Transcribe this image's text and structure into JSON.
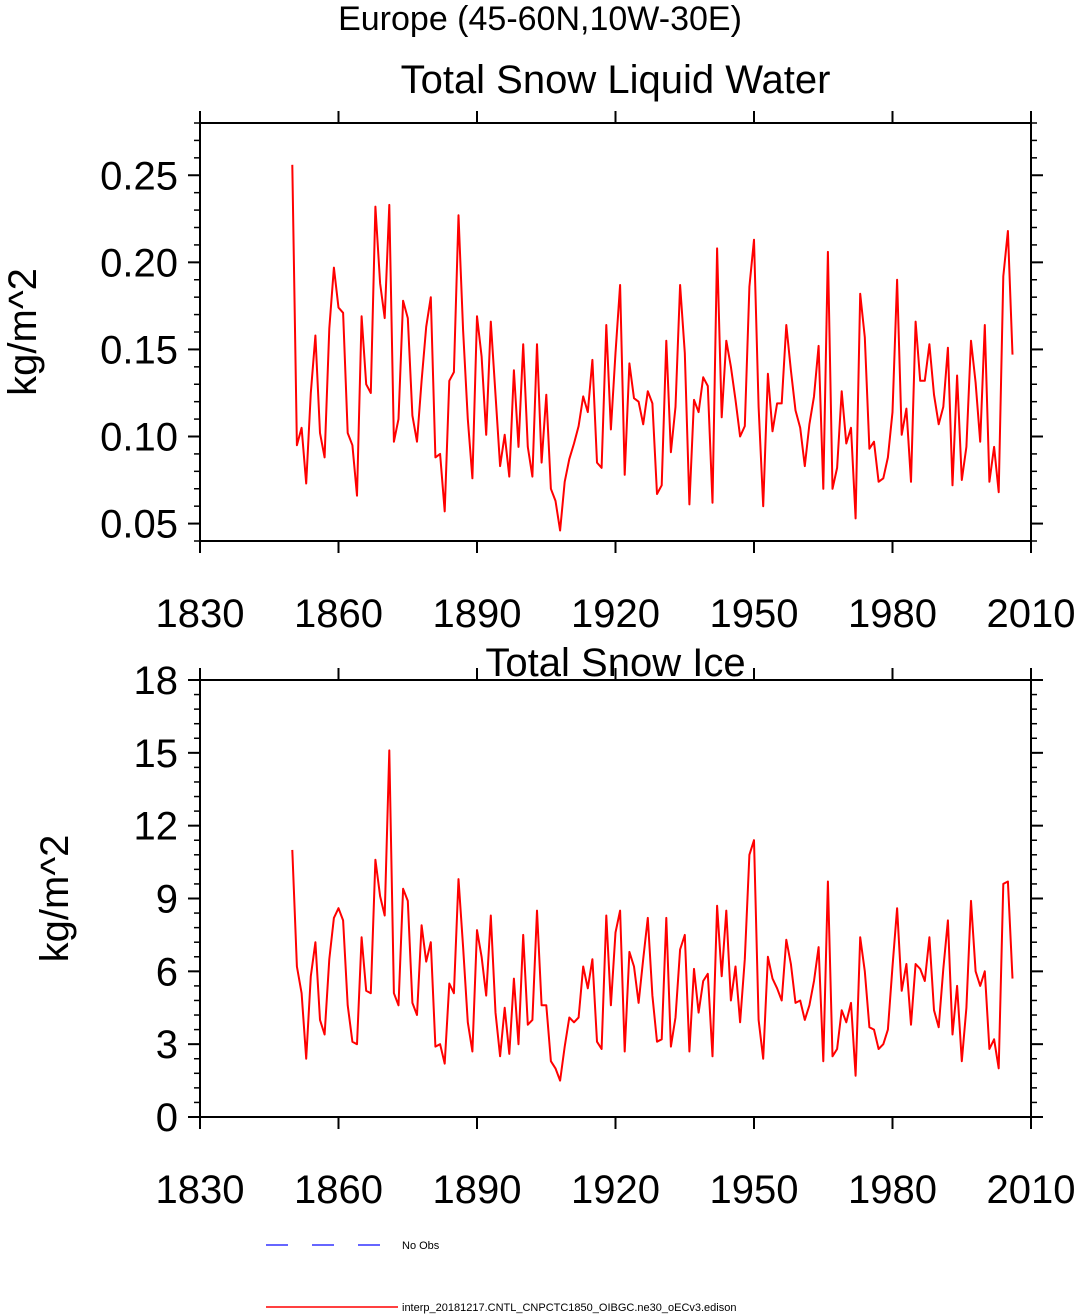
{
  "figure": {
    "title": "Europe (45-60N,10W-30E)",
    "legend": [
      {
        "label": "No Obs",
        "color": "#3333ff",
        "style": "dashed"
      },
      {
        "label": "interp_20181217.CNTL_CNPCTC1850_OIBGC.ne30_oECv3.edison",
        "color": "#ff0000",
        "style": "solid"
      }
    ]
  },
  "chart_data": [
    {
      "type": "line",
      "title": "Total Snow Liquid Water",
      "xlabel": "",
      "ylabel": "kg/m^2",
      "xlim": [
        1830,
        2010
      ],
      "ylim": [
        0.04,
        0.28
      ],
      "xticks": [
        "1830",
        "1860",
        "1890",
        "1920",
        "1950",
        "1980",
        "2010"
      ],
      "xtick_values": [
        1830,
        1860,
        1890,
        1920,
        1950,
        1980,
        2010
      ],
      "yticks": [
        "0.05",
        "0.10",
        "0.15",
        "0.20",
        "0.25"
      ],
      "ytick_values": [
        0.05,
        0.1,
        0.15,
        0.2,
        0.25
      ],
      "grid": false,
      "x_start": 1850,
      "series": [
        {
          "name": "interp_20181217.CNTL_CNPCTC1850_OIBGC.ne30_oECv3.edison",
          "color": "#ff0000",
          "values": [
            0.256,
            0.095,
            0.105,
            0.073,
            0.125,
            0.158,
            0.102,
            0.088,
            0.162,
            0.197,
            0.174,
            0.171,
            0.102,
            0.095,
            0.066,
            0.169,
            0.13,
            0.125,
            0.232,
            0.188,
            0.168,
            0.233,
            0.097,
            0.11,
            0.178,
            0.168,
            0.112,
            0.097,
            0.132,
            0.163,
            0.18,
            0.088,
            0.09,
            0.057,
            0.132,
            0.137,
            0.227,
            0.161,
            0.11,
            0.076,
            0.169,
            0.146,
            0.101,
            0.166,
            0.124,
            0.083,
            0.101,
            0.077,
            0.138,
            0.094,
            0.153,
            0.094,
            0.077,
            0.153,
            0.085,
            0.124,
            0.07,
            0.063,
            0.046,
            0.074,
            0.087,
            0.096,
            0.106,
            0.123,
            0.114,
            0.144,
            0.085,
            0.082,
            0.164,
            0.104,
            0.148,
            0.187,
            0.078,
            0.142,
            0.122,
            0.12,
            0.107,
            0.126,
            0.119,
            0.067,
            0.072,
            0.155,
            0.091,
            0.117,
            0.187,
            0.148,
            0.061,
            0.121,
            0.114,
            0.134,
            0.129,
            0.062,
            0.208,
            0.111,
            0.155,
            0.14,
            0.121,
            0.1,
            0.106,
            0.186,
            0.213,
            0.117,
            0.06,
            0.136,
            0.103,
            0.119,
            0.119,
            0.164,
            0.138,
            0.115,
            0.105,
            0.083,
            0.107,
            0.123,
            0.152,
            0.07,
            0.206,
            0.07,
            0.082,
            0.126,
            0.096,
            0.105,
            0.053,
            0.182,
            0.157,
            0.093,
            0.097,
            0.074,
            0.076,
            0.088,
            0.114,
            0.19,
            0.101,
            0.116,
            0.074,
            0.166,
            0.132,
            0.132,
            0.153,
            0.124,
            0.107,
            0.117,
            0.151,
            0.072,
            0.135,
            0.075,
            0.094,
            0.155,
            0.131,
            0.097,
            0.164,
            0.074,
            0.094,
            0.068,
            0.192,
            0.218,
            0.147
          ]
        }
      ]
    },
    {
      "type": "line",
      "title": "Total Snow Ice",
      "xlabel": "",
      "ylabel": "kg/m^2",
      "xlim": [
        1830,
        2010
      ],
      "ylim": [
        0,
        18
      ],
      "xticks": [
        "1830",
        "1860",
        "1890",
        "1920",
        "1950",
        "1980",
        "2010"
      ],
      "xtick_values": [
        1830,
        1860,
        1890,
        1920,
        1950,
        1980,
        2010
      ],
      "yticks": [
        "0",
        "3",
        "6",
        "9",
        "12",
        "15",
        "18"
      ],
      "ytick_values": [
        0,
        3,
        6,
        9,
        12,
        15,
        18
      ],
      "grid": false,
      "x_start": 1850,
      "series": [
        {
          "name": "interp_20181217.CNTL_CNPCTC1850_OIBGC.ne30_oECv3.edison",
          "color": "#ff0000",
          "values": [
            11.0,
            6.2,
            5.1,
            2.4,
            5.8,
            7.2,
            4.0,
            3.4,
            6.5,
            8.2,
            8.6,
            8.1,
            4.6,
            3.1,
            3.0,
            7.4,
            5.2,
            5.1,
            10.6,
            9.1,
            8.3,
            15.1,
            5.1,
            4.6,
            9.4,
            8.9,
            4.7,
            4.2,
            7.9,
            6.4,
            7.2,
            2.9,
            3.0,
            2.2,
            5.5,
            5.1,
            9.8,
            7.0,
            3.9,
            2.7,
            7.7,
            6.6,
            5.0,
            8.3,
            4.3,
            2.5,
            4.5,
            2.6,
            5.7,
            3.0,
            7.5,
            3.8,
            4.0,
            8.5,
            4.6,
            4.6,
            2.3,
            2.0,
            1.5,
            2.9,
            4.1,
            3.9,
            4.1,
            6.2,
            5.3,
            6.5,
            3.1,
            2.8,
            8.3,
            4.6,
            7.6,
            8.5,
            2.7,
            6.8,
            6.2,
            4.7,
            6.5,
            8.2,
            5.0,
            3.1,
            3.2,
            8.2,
            2.9,
            4.1,
            6.9,
            7.5,
            2.7,
            6.1,
            4.3,
            5.6,
            5.9,
            2.5,
            8.7,
            5.8,
            8.5,
            4.8,
            6.2,
            3.9,
            6.5,
            10.8,
            11.4,
            4.0,
            2.4,
            6.6,
            5.7,
            5.3,
            4.8,
            7.3,
            6.3,
            4.7,
            4.8,
            4.0,
            4.6,
            5.6,
            7.0,
            2.3,
            9.7,
            2.5,
            2.8,
            4.4,
            3.9,
            4.7,
            1.7,
            7.4,
            6.0,
            3.7,
            3.6,
            2.8,
            3.0,
            3.6,
            6.2,
            8.6,
            5.2,
            6.3,
            3.8,
            6.3,
            6.1,
            5.6,
            7.4,
            4.4,
            3.7,
            6.1,
            8.1,
            3.4,
            5.4,
            2.3,
            4.5,
            8.9,
            6.0,
            5.4,
            6.0,
            2.8,
            3.2,
            2.0,
            9.6,
            9.7,
            5.7
          ]
        }
      ]
    }
  ]
}
